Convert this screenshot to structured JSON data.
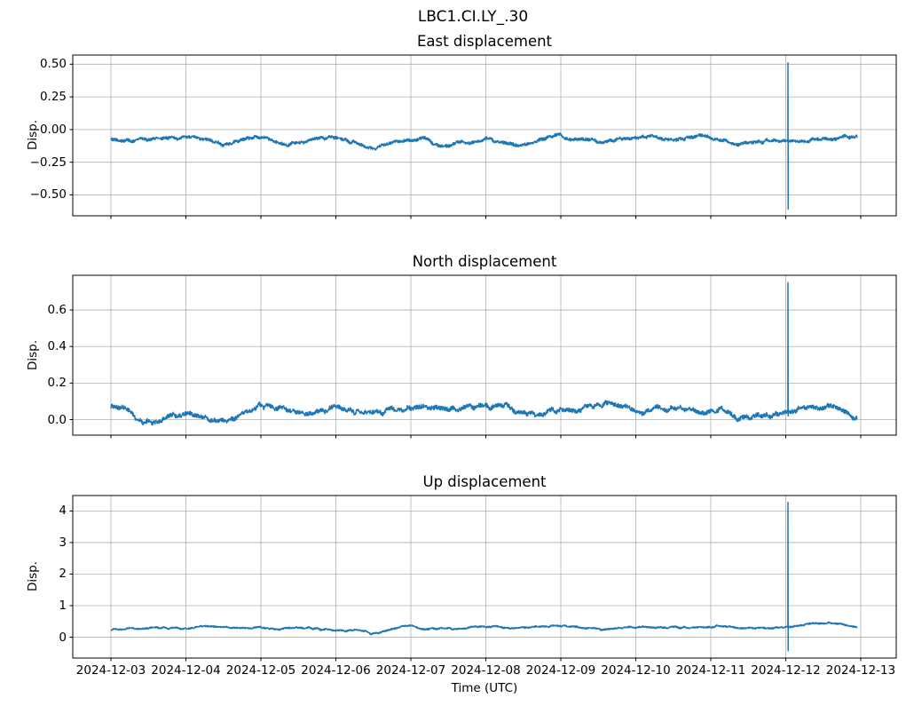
{
  "figure": {
    "suptitle": "LBC1.CI.LY_.30",
    "background_color": "#ffffff",
    "line_color": "#1f77b4",
    "grid_color": "#b0b0b0",
    "spine_color": "#000000",
    "tick_color": "#000000"
  },
  "chart_data": {
    "type": "line",
    "title": "LBC1.CI.LY_.30",
    "xlabel": "Time (UTC)",
    "legend": "none",
    "grid": "on",
    "x_tick_labels": [
      "2024-12-03",
      "2024-12-04",
      "2024-12-05",
      "2024-12-06",
      "2024-12-07",
      "2024-12-08",
      "2024-12-09",
      "2024-12-10",
      "2024-12-11",
      "2024-12-12",
      "2024-12-13"
    ],
    "x_range_days_relative_to_first_tick": [
      -0.51,
      10.47
    ],
    "series_color": "#1f77b4",
    "subplots": [
      {
        "title": "East displacement",
        "ylabel": "Disp.",
        "ytick_labels": [
          "0.50",
          "0.25",
          "0.00",
          "−0.25",
          "−0.50"
        ],
        "ytick_values": [
          0.5,
          0.25,
          0.0,
          -0.25,
          -0.5
        ],
        "ylim": [
          -0.66,
          0.57
        ],
        "baseline_mean": -0.08,
        "typical_range": [
          -0.19,
          -0.02
        ],
        "envelope_step_days": 0.5,
        "envelope": [
          -0.05,
          -0.09,
          -0.06,
          -0.1,
          -0.07,
          -0.1,
          -0.06,
          -0.13,
          -0.08,
          -0.12,
          -0.06,
          -0.11,
          -0.05,
          -0.1,
          -0.07,
          -0.09,
          -0.06,
          -0.1,
          -0.07,
          -0.08,
          -0.04
        ],
        "noise": {
          "slow_amp": 0.022,
          "fast_amp": 0.011,
          "seed": 7
        },
        "spike": {
          "t_days": 9.03,
          "near_label": "2024-12-12",
          "peak": 0.51,
          "trough": -0.61
        }
      },
      {
        "title": "North displacement",
        "ylabel": "Disp.",
        "ytick_labels": [
          "0.6",
          "0.4",
          "0.2",
          "0.0"
        ],
        "ytick_values": [
          0.6,
          0.4,
          0.2,
          0.0
        ],
        "ylim": [
          -0.085,
          0.79
        ],
        "baseline_mean": 0.06,
        "typical_range": [
          -0.04,
          0.19
        ],
        "envelope_step_days": 0.5,
        "envelope": [
          0.08,
          0.01,
          0.05,
          0.0,
          0.06,
          0.04,
          0.07,
          0.03,
          0.08,
          0.05,
          0.09,
          0.04,
          0.06,
          0.1,
          0.04,
          0.07,
          0.05,
          0.02,
          0.06,
          0.09,
          0.02
        ],
        "noise": {
          "slow_amp": 0.024,
          "fast_amp": 0.011,
          "seed": 13
        },
        "spike": {
          "t_days": 9.03,
          "near_label": "2024-12-12",
          "peak": 0.75,
          "trough": 0.02
        }
      },
      {
        "title": "Up displacement",
        "ylabel": "Disp.",
        "ytick_labels": [
          "4",
          "3",
          "2",
          "1",
          "0"
        ],
        "ytick_values": [
          4,
          3,
          2,
          1,
          0
        ],
        "ylim": [
          -0.66,
          4.49
        ],
        "baseline_mean": 0.3,
        "typical_range": [
          0.1,
          0.55
        ],
        "envelope_step_days": 0.5,
        "envelope": [
          0.25,
          0.32,
          0.27,
          0.33,
          0.28,
          0.3,
          0.25,
          0.15,
          0.33,
          0.28,
          0.35,
          0.3,
          0.32,
          0.27,
          0.33,
          0.3,
          0.32,
          0.27,
          0.3,
          0.42,
          0.38
        ],
        "noise": {
          "slow_amp": 0.05,
          "fast_amp": 0.022,
          "seed": 21
        },
        "spike": {
          "t_days": 9.03,
          "near_label": "2024-12-12",
          "peak": 4.27,
          "trough": -0.43
        }
      }
    ]
  }
}
